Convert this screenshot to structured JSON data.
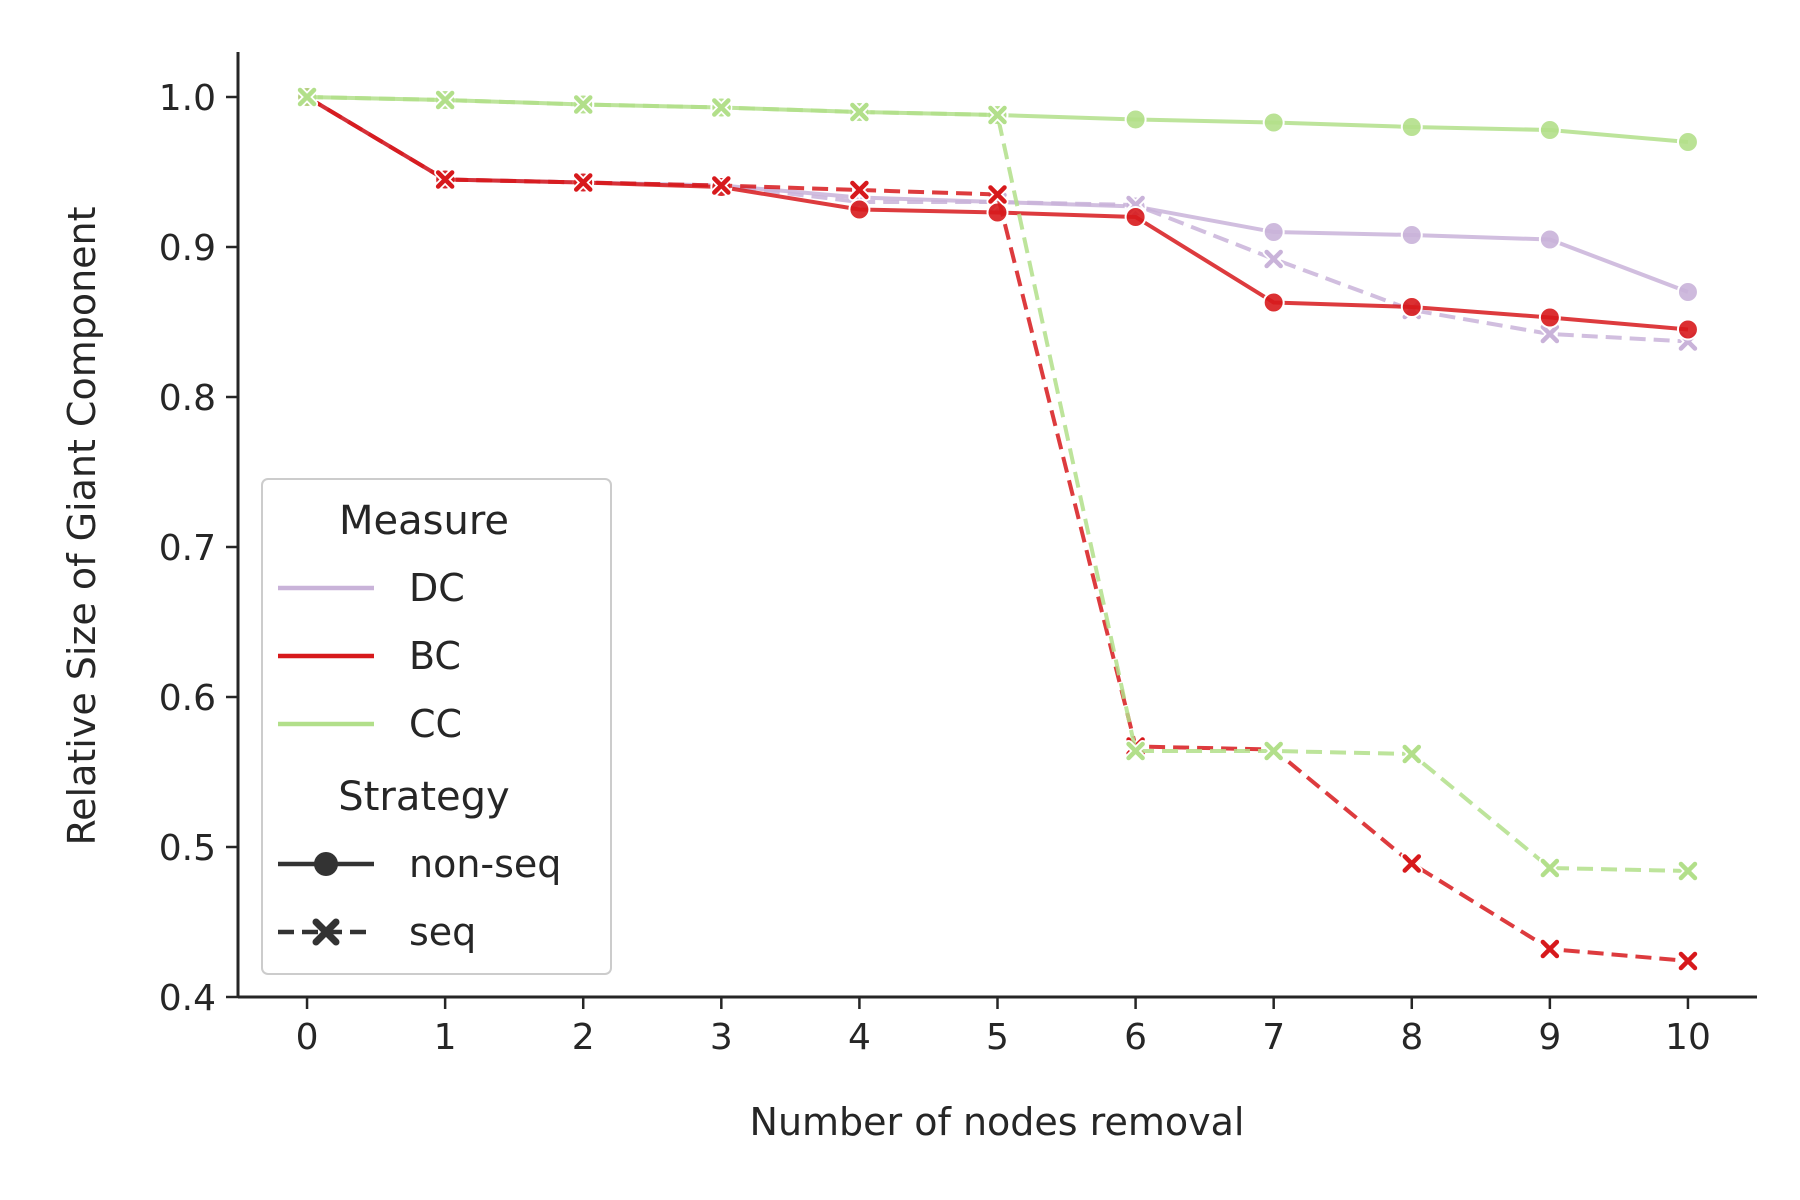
{
  "chart_data": {
    "type": "line",
    "xlabel": "Number of nodes removal",
    "ylabel": "Relative Size of Giant Component",
    "xlim": [
      -0.5,
      10.5
    ],
    "ylim": [
      0.4,
      1.03
    ],
    "x": [
      0,
      1,
      2,
      3,
      4,
      5,
      6,
      7,
      8,
      9,
      10
    ],
    "xticks": [
      "0",
      "1",
      "2",
      "3",
      "4",
      "5",
      "6",
      "7",
      "8",
      "9",
      "10"
    ],
    "yticks": [
      "0.4",
      "0.5",
      "0.6",
      "0.7",
      "0.8",
      "0.9",
      "1.0"
    ],
    "grid": false,
    "legend": {
      "placement": "lower-left",
      "measure_title": "Measure",
      "strategy_title": "Strategy",
      "measures": [
        {
          "name": "DC",
          "color": "#c9b3d9"
        },
        {
          "name": "BC",
          "color": "#d7191c"
        },
        {
          "name": "CC",
          "color": "#b2df8a"
        }
      ],
      "strategies": [
        {
          "name": "non-seq",
          "dash": "solid",
          "marker": "circle"
        },
        {
          "name": "seq",
          "dash": "dashed",
          "marker": "x"
        }
      ]
    },
    "series": [
      {
        "measure": "DC",
        "strategy": "non-seq",
        "color": "#c9b3d9",
        "values": [
          1.0,
          0.945,
          0.943,
          0.941,
          0.933,
          0.93,
          0.927,
          0.91,
          0.908,
          0.905,
          0.87
        ]
      },
      {
        "measure": "DC",
        "strategy": "seq",
        "color": "#c9b3d9",
        "values": [
          1.0,
          0.945,
          0.943,
          0.941,
          0.93,
          0.93,
          0.928,
          0.892,
          0.858,
          0.842,
          0.837
        ]
      },
      {
        "measure": "BC",
        "strategy": "non-seq",
        "color": "#d7191c",
        "values": [
          1.0,
          0.945,
          0.943,
          0.94,
          0.925,
          0.923,
          0.92,
          0.863,
          0.86,
          0.853,
          0.845
        ]
      },
      {
        "measure": "BC",
        "strategy": "seq",
        "color": "#d7191c",
        "values": [
          1.0,
          0.945,
          0.943,
          0.941,
          0.938,
          0.935,
          0.567,
          0.565,
          0.489,
          0.432,
          0.424
        ]
      },
      {
        "measure": "CC",
        "strategy": "non-seq",
        "color": "#b2df8a",
        "values": [
          1.0,
          0.998,
          0.995,
          0.993,
          0.99,
          0.988,
          0.985,
          0.983,
          0.98,
          0.978,
          0.97
        ]
      },
      {
        "measure": "CC",
        "strategy": "seq",
        "color": "#b2df8a",
        "values": [
          1.0,
          0.998,
          0.995,
          0.993,
          0.99,
          0.988,
          0.564,
          0.564,
          0.562,
          0.486,
          0.484
        ]
      }
    ]
  }
}
